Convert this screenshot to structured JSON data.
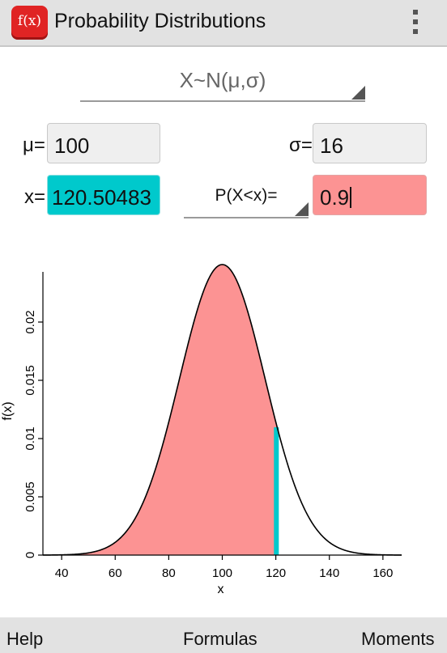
{
  "app": {
    "icon_text": "f(x)",
    "title": "Probability Distributions"
  },
  "distribution": {
    "selected": "X~N(μ,σ)"
  },
  "inputs": {
    "mu_label": "μ=",
    "mu_value": "100",
    "sigma_label": "σ=",
    "sigma_value": "16",
    "x_label": "x=",
    "x_value": "120.50483",
    "prob_type": "P(X<x)=",
    "prob_value": "0.9"
  },
  "colors": {
    "x_field": "#00c9cc",
    "prob_field": "#fc9393",
    "shaded_area": "#fc9393",
    "x_marker": "#00c9cc"
  },
  "chart_data": {
    "type": "area",
    "xlabel": "x",
    "ylabel": "f(x)",
    "xlim": [
      33,
      167
    ],
    "ylim": [
      0,
      0.025
    ],
    "xticks": [
      "40",
      "60",
      "80",
      "100",
      "120",
      "140",
      "160"
    ],
    "yticks": [
      "0",
      "0.005",
      "0.01",
      "0.015",
      "0.02"
    ],
    "curve": {
      "mean": 100,
      "sd": 16
    },
    "shaded_below": 120.50483,
    "marker_x": 120.50483
  },
  "bottom_bar": {
    "help": "Help",
    "formulas": "Formulas",
    "moments": "Moments"
  }
}
